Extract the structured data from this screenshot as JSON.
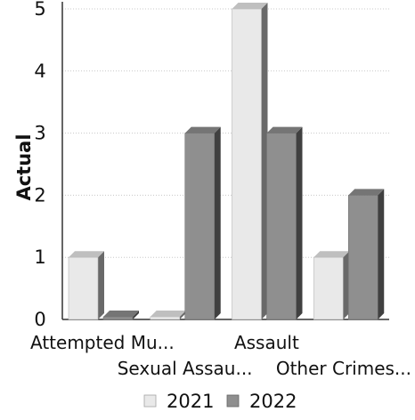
{
  "chart_data": {
    "type": "bar",
    "ylabel": "Actual",
    "xlabel": "",
    "categories": [
      "Attempted Mu...",
      "Sexual Assau...",
      "Assault",
      "Other Crimes..."
    ],
    "series": [
      {
        "name": "2021",
        "values": [
          1,
          0,
          5,
          1
        ],
        "color": "#e9e9e9"
      },
      {
        "name": "2022",
        "values": [
          0,
          3,
          3,
          2
        ],
        "color": "#8f8f8f"
      }
    ],
    "ylim": [
      0,
      5
    ],
    "yticks": [
      0,
      1,
      2,
      3,
      4,
      5
    ],
    "grid": true,
    "legend_position": "bottom",
    "style": "3d-bar"
  }
}
